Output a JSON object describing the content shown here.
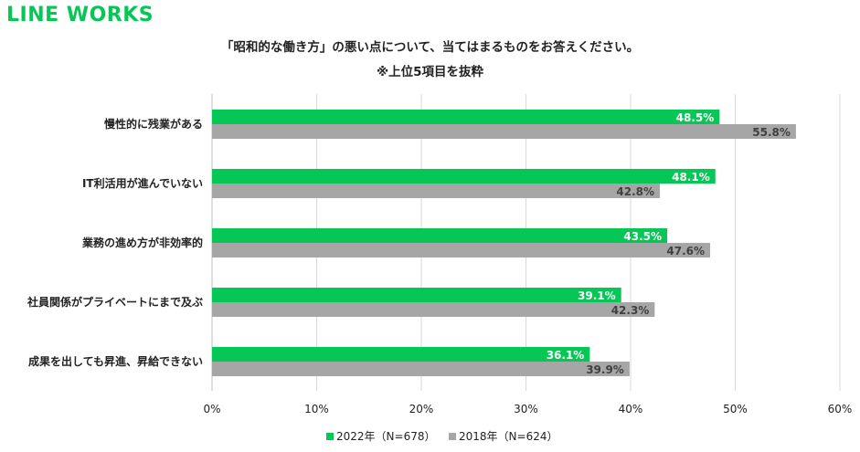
{
  "brand": {
    "logo_text": "LINE WORKS",
    "color": "#06c755"
  },
  "chart_data": {
    "type": "bar",
    "orientation": "horizontal",
    "title": "「昭和的な働き方」の悪い点について、当てはまるものをお答えください。",
    "subtitle": "※上位5項目を抜粋",
    "categories": [
      "慢性的に残業がある",
      "IT利活用が進んでいない",
      "業務の進め方が非効率的",
      "社員関係がプライベートにまで及ぶ",
      "成果を出しても昇進、昇給できない"
    ],
    "series": [
      {
        "name": "2022年（N=678）",
        "color": "#06c755",
        "label_color": "#ffffff",
        "values": [
          48.5,
          48.1,
          43.5,
          39.1,
          36.1
        ],
        "labels": [
          "48.5%",
          "48.1%",
          "43.5%",
          "39.1%",
          "36.1%"
        ]
      },
      {
        "name": "2018年（N=624）",
        "color": "#a6a6a6",
        "label_color": "#404040",
        "values": [
          55.8,
          42.8,
          47.6,
          42.3,
          39.9
        ],
        "labels": [
          "55.8%",
          "42.8%",
          "47.6%",
          "42.3%",
          "39.9%"
        ]
      }
    ],
    "xlim": [
      0,
      60
    ],
    "xticks": [
      "0%",
      "10%",
      "20%",
      "30%",
      "40%",
      "50%",
      "60%"
    ],
    "grid": true,
    "legend_position": "bottom"
  }
}
